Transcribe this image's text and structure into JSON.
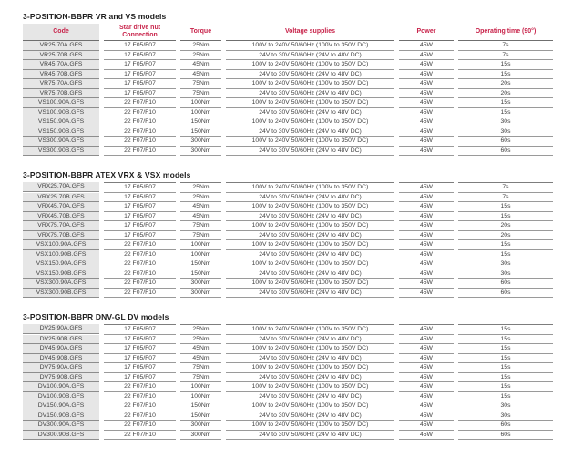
{
  "colors": {
    "header_text": "#c8234a",
    "title_text": "#1c1c1c",
    "body_text": "#424242",
    "code_cell_background": "#e6e6e6",
    "row_border": "#9a9a9a",
    "header_border": "#6f6f6f",
    "page_background": "#ffffff"
  },
  "columns": [
    {
      "key": "code",
      "label": "Code"
    },
    {
      "key": "star-drive-nut-connection",
      "label": "Star drive nut\nConnection"
    },
    {
      "key": "torque",
      "label": "Torque"
    },
    {
      "key": "voltage-supplies",
      "label": "Voltage supplies"
    },
    {
      "key": "power",
      "label": "Power"
    },
    {
      "key": "operating-time",
      "label": "Operating time (90°)"
    }
  ],
  "tables": [
    {
      "title": "3-POSITION-BBPR VR and VS models",
      "show_header": true,
      "rows": [
        [
          "VR25.70A.GFS",
          "17 F05/F07",
          "25Nm",
          "100V to 240V 50/60Hz (100V to 350V DC)",
          "45W",
          "7s"
        ],
        [
          "VR25.70B.GFS",
          "17 F05/F07",
          "25Nm",
          "24V to 30V 50/60Hz (24V to 48V DC)",
          "45W",
          "7s"
        ],
        [
          "VR45.70A.GFS",
          "17 F05/F07",
          "45Nm",
          "100V to 240V 50/60Hz (100V to 350V DC)",
          "45W",
          "15s"
        ],
        [
          "VR45.70B.GFS",
          "17 F05/F07",
          "45Nm",
          "24V to 30V 50/60Hz (24V to 48V DC)",
          "45W",
          "15s"
        ],
        [
          "VR75.70A.GFS",
          "17 F05/F07",
          "75Nm",
          "100V to 240V 50/60Hz (100V to 350V DC)",
          "45W",
          "20s"
        ],
        [
          "VR75.70B.GFS",
          "17 F05/F07",
          "75Nm",
          "24V to 30V 50/60Hz (24V to 48V DC)",
          "45W",
          "20s"
        ],
        [
          "VS100.90A.GFS",
          "22 F07/F10",
          "100Nm",
          "100V to 240V 50/60Hz (100V to 350V DC)",
          "45W",
          "15s"
        ],
        [
          "VS100.90B.GFS",
          "22 F07/F10",
          "100Nm",
          "24V to 30V 50/60Hz (24V to 48V DC)",
          "45W",
          "15s"
        ],
        [
          "VS150.90A.GFS",
          "22 F07/F10",
          "150Nm",
          "100V to 240V 50/60Hz (100V to 350V DC)",
          "45W",
          "30s"
        ],
        [
          "VS150.90B.GFS",
          "22 F07/F10",
          "150Nm",
          "24V to 30V 50/60Hz (24V to 48V DC)",
          "45W",
          "30s"
        ],
        [
          "VS300.90A.GFS",
          "22 F07/F10",
          "300Nm",
          "100V to 240V 50/60Hz (100V to 350V DC)",
          "45W",
          "60s"
        ],
        [
          "VS300.90B.GFS",
          "22 F07/F10",
          "300Nm",
          "24V to 30V 50/60Hz (24V to 48V DC)",
          "45W",
          "60s"
        ]
      ]
    },
    {
      "title": "3-POSITION-BBPR ATEX VRX & VSX models",
      "show_header": false,
      "rows": [
        [
          "VRX25.70A.GFS",
          "17 F05/F07",
          "25Nm",
          "100V to 240V 50/60Hz (100V to 350V DC)",
          "45W",
          "7s"
        ],
        [
          "VRX25.70B.GFS",
          "17 F05/F07",
          "25Nm",
          "24V to 30V 50/60Hz (24V to 48V DC)",
          "45W",
          "7s"
        ],
        [
          "VRX45.70A.GFS",
          "17 F05/F07",
          "45Nm",
          "100V to 240V 50/60Hz (100V to 350V DC)",
          "45W",
          "15s"
        ],
        [
          "VRX45.70B.GFS",
          "17 F05/F07",
          "45Nm",
          "24V to 30V 50/60Hz (24V to 48V DC)",
          "45W",
          "15s"
        ],
        [
          "VRX75.70A.GFS",
          "17 F05/F07",
          "75Nm",
          "100V to 240V 50/60Hz (100V to 350V DC)",
          "45W",
          "20s"
        ],
        [
          "VRX75.70B.GFS",
          "17 F05/F07",
          "75Nm",
          "24V to 30V 50/60Hz (24V to 48V DC)",
          "45W",
          "20s"
        ],
        [
          "VSX100.90A.GFS",
          "22 F07/F10",
          "100Nm",
          "100V to 240V 50/60Hz (100V to 350V DC)",
          "45W",
          "15s"
        ],
        [
          "VSX100.90B.GFS",
          "22 F07/F10",
          "100Nm",
          "24V to 30V 50/60Hz (24V to 48V DC)",
          "45W",
          "15s"
        ],
        [
          "VSX150.90A.GFS",
          "22 F07/F10",
          "150Nm",
          "100V to 240V 50/60Hz (100V to 350V DC)",
          "45W",
          "30s"
        ],
        [
          "VSX150.90B.GFS",
          "22 F07/F10",
          "150Nm",
          "24V to 30V 50/60Hz (24V to 48V DC)",
          "45W",
          "30s"
        ],
        [
          "VSX300.90A.GFS",
          "22 F07/F10",
          "300Nm",
          "100V to 240V 50/60Hz (100V to 350V DC)",
          "45W",
          "60s"
        ],
        [
          "VSX300.90B.GFS",
          "22 F07/F10",
          "300Nm",
          "24V to 30V 50/60Hz (24V to 48V DC)",
          "45W",
          "60s"
        ]
      ]
    },
    {
      "title": "3-POSITION-BBPR DNV-GL DV models",
      "show_header": false,
      "rows": [
        [
          "DV25.90A.GFS",
          "17 F05/F07",
          "25Nm",
          "100V to 240V 50/60Hz (100V to 350V DC)",
          "45W",
          "15s"
        ],
        [
          "DV25.90B.GFS",
          "17 F05/F07",
          "25Nm",
          "24V to 30V 50/60Hz (24V to 48V DC)",
          "45W",
          "15s"
        ],
        [
          "DV45.90A.GFS",
          "17 F05/F07",
          "45Nm",
          "100V to 240V 50/60Hz (100V to 350V DC)",
          "45W",
          "15s"
        ],
        [
          "DV45.90B.GFS",
          "17 F05/F07",
          "45Nm",
          "24V to 30V 50/60Hz (24V to 48V DC)",
          "45W",
          "15s"
        ],
        [
          "DV75.90A.GFS",
          "17 F05/F07",
          "75Nm",
          "100V to 240V 50/60Hz (100V to 350V DC)",
          "45W",
          "15s"
        ],
        [
          "DV75.90B.GFS",
          "17 F05/F07",
          "75Nm",
          "24V to 30V 50/60Hz (24V to 48V DC)",
          "45W",
          "15s"
        ],
        [
          "DV100.90A.GFS",
          "22 F07/F10",
          "100Nm",
          "100V to 240V 50/60Hz (100V to 350V DC)",
          "45W",
          "15s"
        ],
        [
          "DV100.90B.GFS",
          "22 F07/F10",
          "100Nm",
          "24V to 30V 50/60Hz (24V to 48V DC)",
          "45W",
          "15s"
        ],
        [
          "DV150.90A.GFS",
          "22 F07/F10",
          "150Nm",
          "100V to 240V 50/60Hz (100V to 350V DC)",
          "45W",
          "30s"
        ],
        [
          "DV150.90B.GFS",
          "22 F07/F10",
          "150Nm",
          "24V to 30V 50/60Hz (24V to 48V DC)",
          "45W",
          "30s"
        ],
        [
          "DV300.90A.GFS",
          "22 F07/F10",
          "300Nm",
          "100V to 240V 50/60Hz (100V to 350V DC)",
          "45W",
          "60s"
        ],
        [
          "DV300.90B.GFS",
          "22 F07/F10",
          "300Nm",
          "24V to 30V 50/60Hz (24V to 48V DC)",
          "45W",
          "60s"
        ]
      ]
    }
  ]
}
